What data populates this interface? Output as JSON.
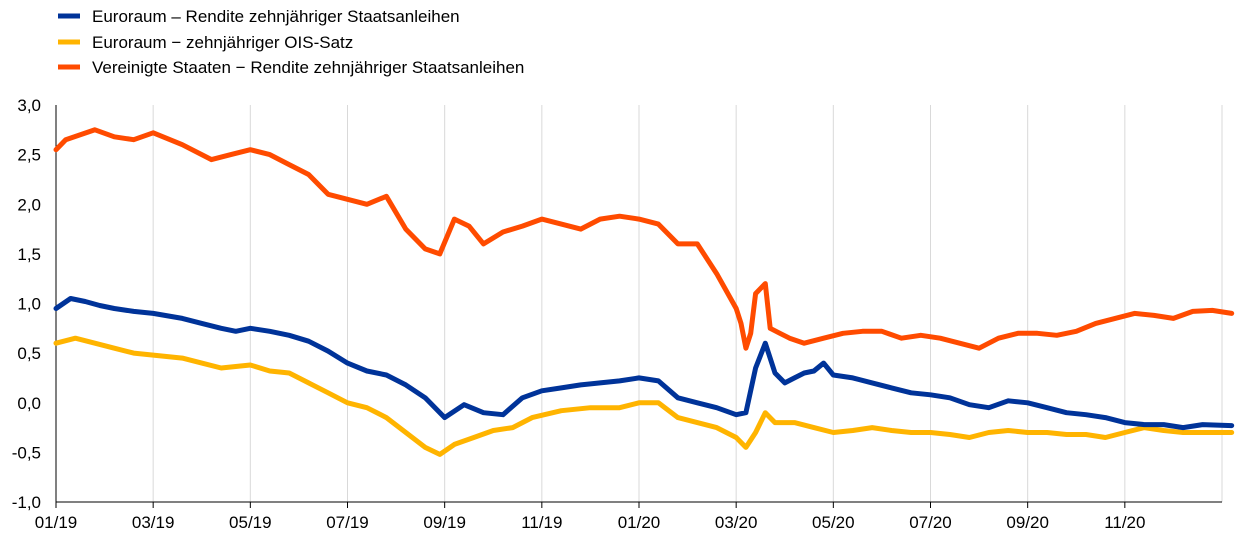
{
  "chart_data": {
    "type": "line",
    "title": "",
    "xlabel": "",
    "ylabel": "",
    "ylim": [
      -1.0,
      3.0
    ],
    "y_ticks": [
      "-1,0",
      "-0,5",
      "0,0",
      "0,5",
      "1,0",
      "1,5",
      "2,0",
      "2,5",
      "3,0"
    ],
    "x_ticks": [
      "01/19",
      "03/19",
      "05/19",
      "07/19",
      "09/19",
      "11/19",
      "01/20",
      "03/20",
      "05/20",
      "07/20",
      "09/20",
      "11/20"
    ],
    "grid": "vertical",
    "legend_position": "top-left",
    "series": [
      {
        "name": "Euroraum – Rendite zehnjähriger Staatsanleihen",
        "color": "#003399",
        "x": [
          0,
          0.15,
          0.3,
          0.45,
          0.6,
          0.8,
          1,
          1.3,
          1.5,
          1.7,
          1.85,
          2,
          2.2,
          2.4,
          2.6,
          2.8,
          3,
          3.2,
          3.4,
          3.6,
          3.8,
          4,
          4.2,
          4.4,
          4.6,
          4.8,
          5,
          5.2,
          5.4,
          5.6,
          5.8,
          6,
          6.2,
          6.4,
          6.6,
          6.8,
          7,
          7.1,
          7.2,
          7.3,
          7.4,
          7.5,
          7.6,
          7.7,
          7.8,
          7.9,
          8,
          8.2,
          8.4,
          8.6,
          8.8,
          9,
          9.2,
          9.4,
          9.6,
          9.8,
          10,
          10.2,
          10.4,
          10.6,
          10.8,
          11,
          11.2,
          11.4,
          11.6,
          11.8,
          12.1
        ],
        "values": [
          0.95,
          1.05,
          1.02,
          0.98,
          0.95,
          0.92,
          0.9,
          0.85,
          0.8,
          0.75,
          0.72,
          0.75,
          0.72,
          0.68,
          0.62,
          0.52,
          0.4,
          0.32,
          0.28,
          0.18,
          0.05,
          -0.15,
          -0.02,
          -0.1,
          -0.12,
          0.05,
          0.12,
          0.15,
          0.18,
          0.2,
          0.22,
          0.25,
          0.22,
          0.05,
          0.0,
          -0.05,
          -0.12,
          -0.1,
          0.35,
          0.6,
          0.3,
          0.2,
          0.25,
          0.3,
          0.32,
          0.4,
          0.28,
          0.25,
          0.2,
          0.15,
          0.1,
          0.08,
          0.05,
          -0.02,
          -0.05,
          0.02,
          0.0,
          -0.05,
          -0.1,
          -0.12,
          -0.15,
          -0.2,
          -0.22,
          -0.22,
          -0.25,
          -0.22,
          -0.23
        ]
      },
      {
        "name": "Euroraum − zehnjähriger OIS-Satz",
        "color": "#FFB400",
        "x": [
          0,
          0.2,
          0.4,
          0.6,
          0.8,
          1,
          1.3,
          1.5,
          1.7,
          2,
          2.2,
          2.4,
          2.6,
          2.8,
          3,
          3.2,
          3.4,
          3.6,
          3.8,
          3.95,
          4.1,
          4.3,
          4.5,
          4.7,
          4.9,
          5.2,
          5.5,
          5.8,
          6,
          6.2,
          6.4,
          6.6,
          6.8,
          7,
          7.1,
          7.2,
          7.3,
          7.4,
          7.6,
          7.8,
          8,
          8.2,
          8.4,
          8.6,
          8.8,
          9,
          9.2,
          9.4,
          9.6,
          9.8,
          10,
          10.2,
          10.4,
          10.6,
          10.8,
          11,
          11.2,
          11.4,
          11.6,
          11.8,
          12.1
        ],
        "values": [
          0.6,
          0.65,
          0.6,
          0.55,
          0.5,
          0.48,
          0.45,
          0.4,
          0.35,
          0.38,
          0.32,
          0.3,
          0.2,
          0.1,
          0.0,
          -0.05,
          -0.15,
          -0.3,
          -0.45,
          -0.52,
          -0.42,
          -0.35,
          -0.28,
          -0.25,
          -0.15,
          -0.08,
          -0.05,
          -0.05,
          0.0,
          0.0,
          -0.15,
          -0.2,
          -0.25,
          -0.35,
          -0.45,
          -0.3,
          -0.1,
          -0.2,
          -0.2,
          -0.25,
          -0.3,
          -0.28,
          -0.25,
          -0.28,
          -0.3,
          -0.3,
          -0.32,
          -0.35,
          -0.3,
          -0.28,
          -0.3,
          -0.3,
          -0.32,
          -0.32,
          -0.35,
          -0.3,
          -0.25,
          -0.28,
          -0.3,
          -0.3,
          -0.3
        ]
      },
      {
        "name": "Vereinigte Staaten − Rendite zehnjähriger Staatsanleihen",
        "color": "#FF4B00",
        "x": [
          0,
          0.1,
          0.25,
          0.4,
          0.6,
          0.8,
          1,
          1.3,
          1.6,
          1.8,
          2,
          2.2,
          2.4,
          2.6,
          2.8,
          3,
          3.2,
          3.4,
          3.6,
          3.8,
          3.95,
          4.1,
          4.25,
          4.4,
          4.6,
          4.8,
          5,
          5.2,
          5.4,
          5.6,
          5.8,
          6,
          6.2,
          6.4,
          6.6,
          6.8,
          7,
          7.05,
          7.1,
          7.15,
          7.2,
          7.3,
          7.35,
          7.45,
          7.55,
          7.7,
          7.9,
          8.1,
          8.3,
          8.5,
          8.7,
          8.9,
          9.1,
          9.3,
          9.5,
          9.7,
          9.9,
          10.1,
          10.3,
          10.5,
          10.7,
          10.9,
          11.1,
          11.3,
          11.5,
          11.7,
          11.9,
          12.1
        ],
        "values": [
          2.55,
          2.65,
          2.7,
          2.75,
          2.68,
          2.65,
          2.72,
          2.6,
          2.45,
          2.5,
          2.55,
          2.5,
          2.4,
          2.3,
          2.1,
          2.05,
          2.0,
          2.08,
          1.75,
          1.55,
          1.5,
          1.85,
          1.78,
          1.6,
          1.72,
          1.78,
          1.85,
          1.8,
          1.75,
          1.85,
          1.88,
          1.85,
          1.8,
          1.6,
          1.6,
          1.3,
          0.95,
          0.8,
          0.55,
          0.7,
          1.1,
          1.2,
          0.75,
          0.7,
          0.65,
          0.6,
          0.65,
          0.7,
          0.72,
          0.72,
          0.65,
          0.68,
          0.65,
          0.6,
          0.55,
          0.65,
          0.7,
          0.7,
          0.68,
          0.72,
          0.8,
          0.85,
          0.9,
          0.88,
          0.85,
          0.92,
          0.93,
          0.9
        ]
      }
    ]
  }
}
